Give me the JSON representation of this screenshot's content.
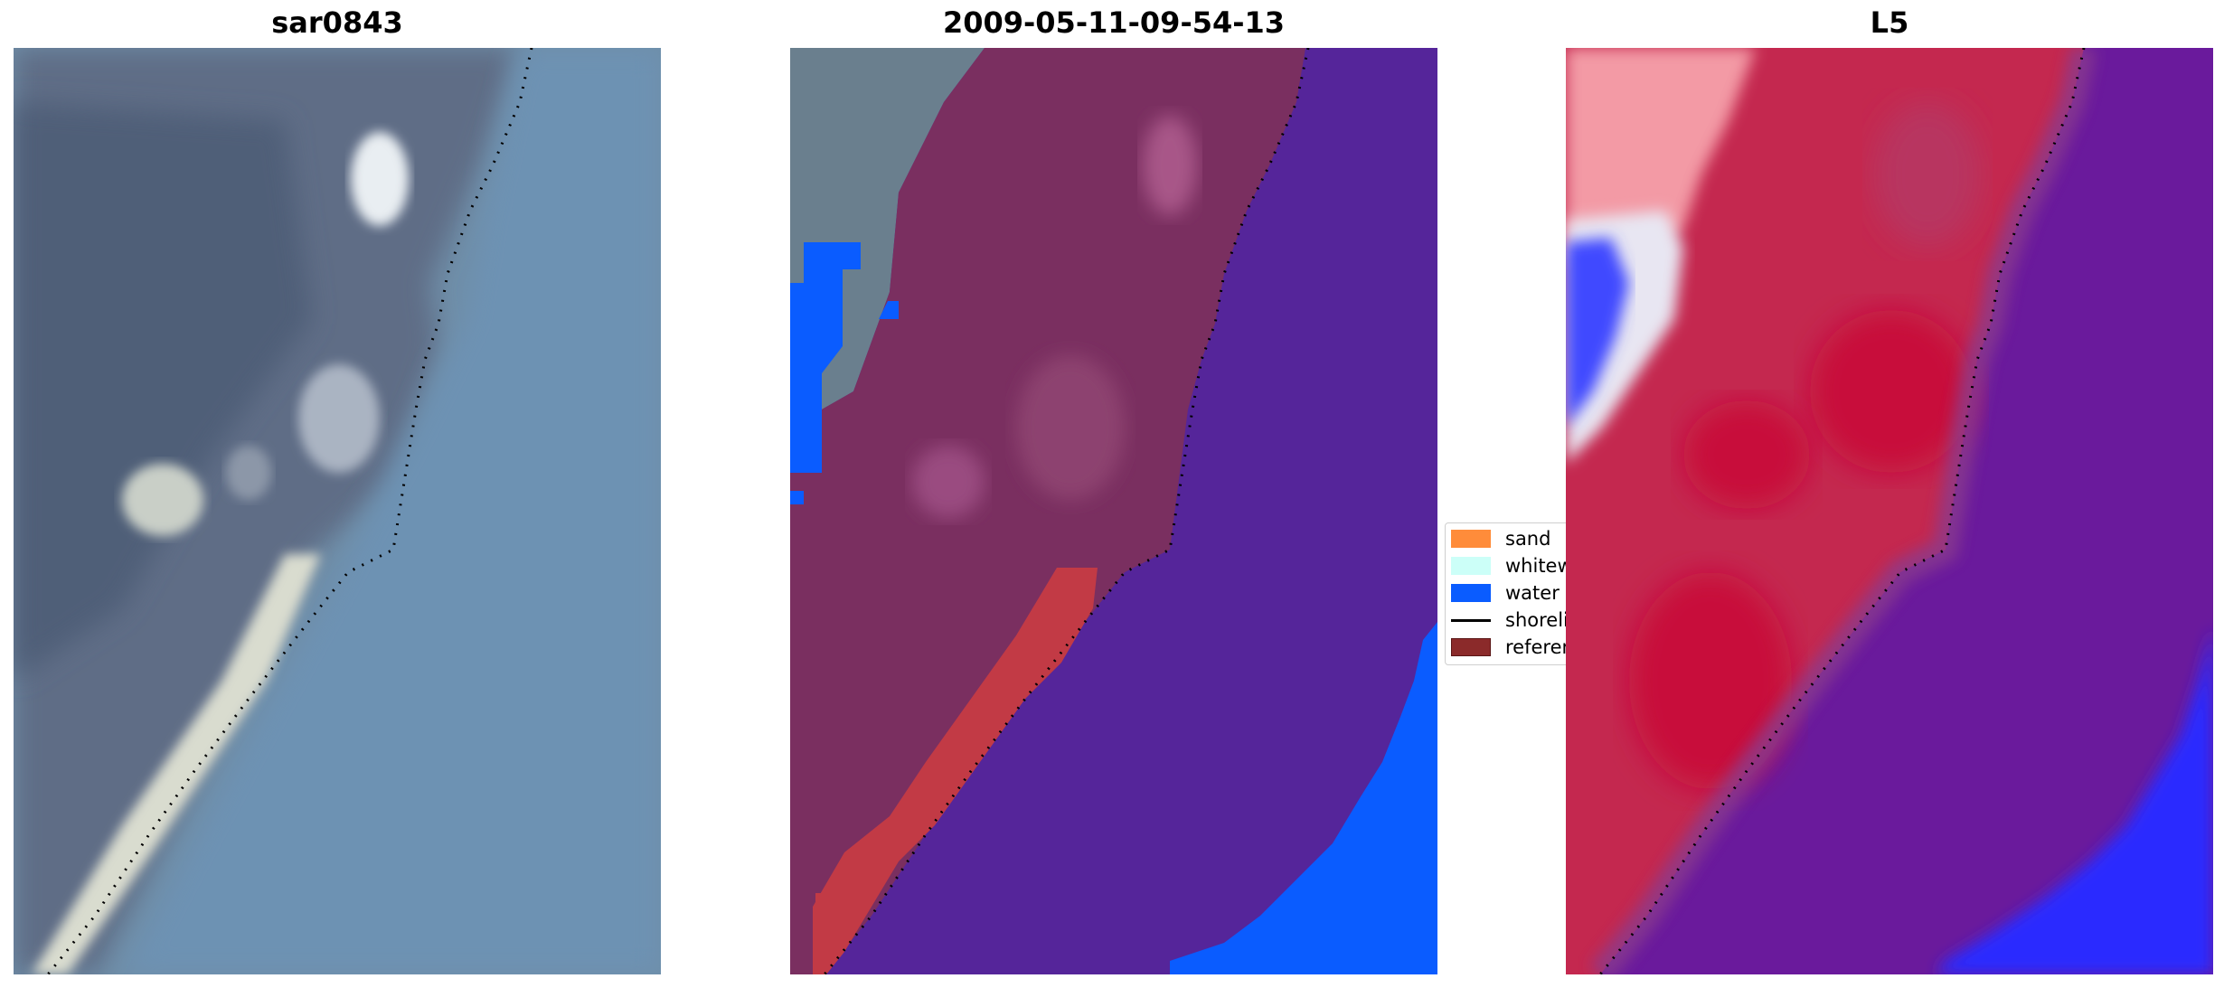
{
  "panels": [
    {
      "title": "sar0843"
    },
    {
      "title": "2009-05-11-09-54-13"
    },
    {
      "title": "L5"
    }
  ],
  "legend": [
    {
      "label": "sand",
      "color": "#ff8c3a",
      "icon": "filled-box"
    },
    {
      "label": "whitewater",
      "color": "#ccfff8",
      "icon": "filled-box"
    },
    {
      "label": "water",
      "color": "#0a5cff",
      "icon": "filled-box"
    },
    {
      "label": "shoreline",
      "color": "#000000",
      "icon": "line"
    },
    {
      "label": "reference shoreline",
      "color": "#8b2a2a",
      "icon": "filled-box"
    }
  ],
  "colors": {
    "water_class": "#0a5cff",
    "reference_shoreline_fill": "#c23a45",
    "land_overlay": "#7a2f60",
    "water_overlay": "#55259a",
    "index_high": "#c8103a",
    "index_low": "#6a1a9c",
    "index_min": "#2a2aff"
  }
}
